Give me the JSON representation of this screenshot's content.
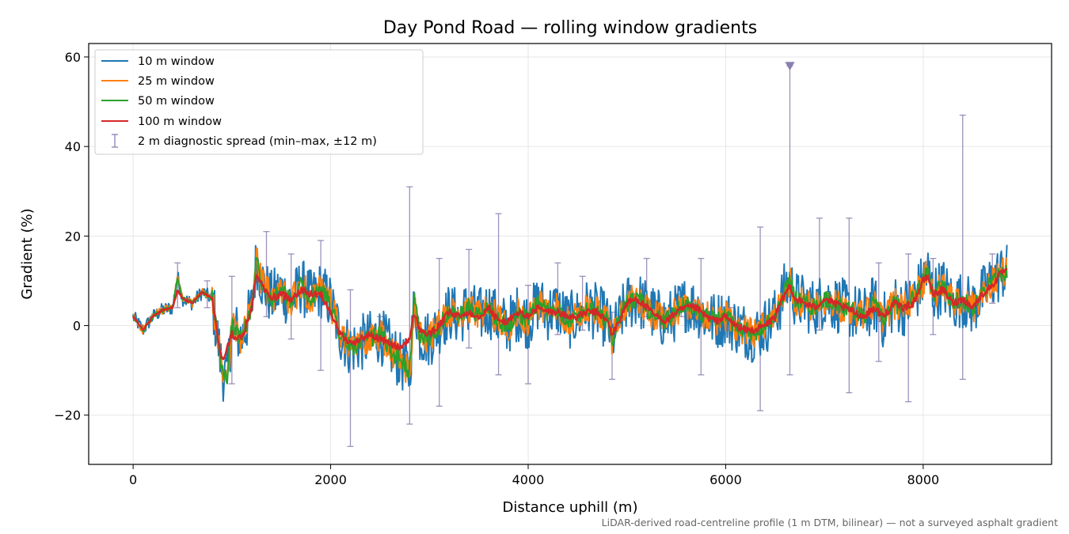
{
  "chart_data": {
    "type": "line",
    "title": "Day Pond Road — rolling window gradients",
    "xlabel": "Distance uphill (m)",
    "ylabel": "Gradient (%)",
    "xlim": [
      -450,
      9300
    ],
    "ylim": [
      -31,
      63
    ],
    "xticks": [
      0,
      2000,
      4000,
      6000,
      8000
    ],
    "yticks": [
      -20,
      0,
      20,
      40,
      60
    ],
    "xtick_labels": [
      "0",
      "2000",
      "4000",
      "6000",
      "8000"
    ],
    "ytick_labels": [
      "−20",
      "0",
      "20",
      "40",
      "60"
    ],
    "grid": true,
    "legend_position": "upper-left",
    "footnote": "LiDAR-derived road-centreline profile (1 m DTM, bilinear) — not a surveyed asphalt gradient",
    "series": [
      {
        "name": "10 m window",
        "color": "#1f77b4",
        "noise": 6.5,
        "x": [
          0,
          100,
          200,
          300,
          400,
          450,
          500,
          600,
          700,
          800,
          850,
          900,
          950,
          1000,
          1100,
          1200,
          1250,
          1300,
          1400,
          1500,
          1600,
          1700,
          1800,
          1900,
          2000,
          2100,
          2200,
          2300,
          2400,
          2500,
          2600,
          2700,
          2800,
          2850,
          2900,
          3000,
          3100,
          3200,
          3300,
          3400,
          3500,
          3600,
          3700,
          3800,
          3900,
          4000,
          4100,
          4200,
          4300,
          4400,
          4500,
          4600,
          4700,
          4800,
          4850,
          4900,
          5000,
          5100,
          5200,
          5300,
          5400,
          5500,
          5600,
          5700,
          5800,
          5900,
          6000,
          6100,
          6200,
          6300,
          6400,
          6500,
          6600,
          6650,
          6700,
          6800,
          6900,
          7000,
          7100,
          7200,
          7300,
          7400,
          7500,
          7600,
          7700,
          7800,
          7900,
          8000,
          8050,
          8100,
          8200,
          8300,
          8400,
          8500,
          8600,
          8700,
          8800,
          8850
        ],
        "y": [
          2,
          -1,
          2,
          3.5,
          4,
          11,
          6,
          5,
          7.5,
          6,
          -2,
          -10,
          -12,
          0,
          -3,
          4,
          15,
          10,
          6,
          8,
          5,
          9,
          6,
          8,
          5,
          -2,
          -5,
          -4,
          -3,
          -2,
          -5,
          -8,
          -10,
          6,
          -2,
          -3,
          0,
          3,
          2,
          4,
          2,
          4,
          1,
          0,
          3,
          1,
          5,
          3,
          4,
          1,
          2,
          4,
          3,
          1,
          -3,
          0,
          5,
          6,
          4,
          2,
          1,
          3,
          5,
          4,
          2,
          1,
          2,
          0,
          -1,
          -2,
          0,
          2,
          8,
          10,
          6,
          5,
          4,
          6,
          5,
          4,
          3,
          2,
          5,
          1,
          5,
          4,
          6,
          10,
          12,
          7,
          9,
          5,
          6,
          4,
          7,
          10,
          12,
          12
        ]
      },
      {
        "name": "25 m window",
        "color": "#ff7f0e",
        "noise": 3.5,
        "x": [
          0,
          100,
          200,
          300,
          400,
          450,
          500,
          600,
          700,
          800,
          850,
          900,
          950,
          1000,
          1100,
          1200,
          1250,
          1300,
          1400,
          1500,
          1600,
          1700,
          1800,
          1900,
          2000,
          2100,
          2200,
          2300,
          2400,
          2500,
          2600,
          2700,
          2800,
          2850,
          2900,
          3000,
          3100,
          3200,
          3300,
          3400,
          3500,
          3600,
          3700,
          3800,
          3900,
          4000,
          4100,
          4200,
          4300,
          4400,
          4500,
          4600,
          4700,
          4800,
          4850,
          4900,
          5000,
          5100,
          5200,
          5300,
          5400,
          5500,
          5600,
          5700,
          5800,
          5900,
          6000,
          6100,
          6200,
          6300,
          6400,
          6500,
          6600,
          6650,
          6700,
          6800,
          6900,
          7000,
          7100,
          7200,
          7300,
          7400,
          7500,
          7600,
          7700,
          7800,
          7900,
          8000,
          8050,
          8100,
          8200,
          8300,
          8400,
          8500,
          8600,
          8700,
          8800,
          8850
        ],
        "y": [
          2,
          -1,
          2,
          3.5,
          4,
          11,
          6,
          5,
          7.5,
          6,
          -2,
          -10,
          -12,
          0,
          -3,
          4,
          15,
          10,
          6,
          8,
          5,
          9,
          6,
          8,
          5,
          -2,
          -5,
          -4,
          -3,
          -2,
          -5,
          -8,
          -10,
          6,
          -2,
          -3,
          0,
          3,
          2,
          4,
          2,
          4,
          1,
          0,
          3,
          1,
          5,
          3,
          4,
          1,
          2,
          4,
          3,
          1,
          -3,
          0,
          5,
          6,
          4,
          2,
          1,
          3,
          5,
          4,
          2,
          1,
          2,
          0,
          -1,
          -2,
          0,
          2,
          8,
          10,
          6,
          5,
          4,
          6,
          5,
          4,
          3,
          2,
          5,
          1,
          5,
          4,
          6,
          10,
          12,
          7,
          9,
          5,
          6,
          4,
          7,
          10,
          12,
          12
        ]
      },
      {
        "name": "50 m window",
        "color": "#2ca02c",
        "noise": 2.0,
        "x": [
          0,
          100,
          200,
          300,
          400,
          450,
          500,
          600,
          700,
          800,
          850,
          900,
          950,
          1000,
          1100,
          1200,
          1250,
          1300,
          1400,
          1500,
          1600,
          1700,
          1800,
          1900,
          2000,
          2100,
          2200,
          2300,
          2400,
          2500,
          2600,
          2700,
          2800,
          2850,
          2900,
          3000,
          3100,
          3200,
          3300,
          3400,
          3500,
          3600,
          3700,
          3800,
          3900,
          4000,
          4100,
          4200,
          4300,
          4400,
          4500,
          4600,
          4700,
          4800,
          4850,
          4900,
          5000,
          5100,
          5200,
          5300,
          5400,
          5500,
          5600,
          5700,
          5800,
          5900,
          6000,
          6100,
          6200,
          6300,
          6400,
          6500,
          6600,
          6650,
          6700,
          6800,
          6900,
          7000,
          7100,
          7200,
          7300,
          7400,
          7500,
          7600,
          7700,
          7800,
          7900,
          8000,
          8050,
          8100,
          8200,
          8300,
          8400,
          8500,
          8600,
          8700,
          8800,
          8850
        ],
        "y": [
          2,
          -1,
          2,
          3.5,
          4,
          11,
          6,
          5,
          7.5,
          6,
          -2,
          -10,
          -12,
          0,
          -3,
          4,
          15,
          10,
          6,
          8,
          5,
          9,
          6,
          8,
          5,
          -2,
          -5,
          -4,
          -3,
          -2,
          -5,
          -8,
          -10,
          6,
          -2,
          -3,
          0,
          3,
          2,
          4,
          2,
          4,
          1,
          0,
          3,
          1,
          5,
          3,
          4,
          1,
          2,
          4,
          3,
          1,
          -3,
          0,
          5,
          6,
          4,
          2,
          1,
          3,
          5,
          4,
          2,
          1,
          2,
          0,
          -1,
          -2,
          0,
          2,
          8,
          10,
          6,
          5,
          4,
          6,
          5,
          4,
          3,
          2,
          5,
          1,
          5,
          4,
          6,
          10,
          12,
          7,
          9,
          5,
          6,
          4,
          7,
          10,
          12,
          12
        ]
      },
      {
        "name": "100 m window",
        "color": "#d62728",
        "noise": 0.8,
        "x": [
          0,
          100,
          200,
          300,
          400,
          450,
          500,
          600,
          700,
          800,
          850,
          900,
          950,
          1000,
          1100,
          1200,
          1250,
          1300,
          1400,
          1500,
          1600,
          1700,
          1800,
          1900,
          2000,
          2100,
          2200,
          2300,
          2400,
          2500,
          2600,
          2700,
          2800,
          2850,
          2900,
          3000,
          3100,
          3200,
          3300,
          3400,
          3500,
          3600,
          3700,
          3800,
          3900,
          4000,
          4100,
          4200,
          4300,
          4400,
          4500,
          4600,
          4700,
          4800,
          4850,
          4900,
          5000,
          5100,
          5200,
          5300,
          5400,
          5500,
          5600,
          5700,
          5800,
          5900,
          6000,
          6100,
          6200,
          6300,
          6400,
          6500,
          6600,
          6650,
          6700,
          6800,
          6900,
          7000,
          7100,
          7200,
          7300,
          7400,
          7500,
          7600,
          7700,
          7800,
          7900,
          8000,
          8050,
          8100,
          8200,
          8300,
          8400,
          8500,
          8600,
          8700,
          8800,
          8850
        ],
        "y": [
          2,
          -1,
          2,
          3.5,
          4,
          8,
          6,
          5,
          7.5,
          6,
          -2,
          -8,
          -5,
          -2,
          -3,
          4,
          12,
          9,
          6,
          7,
          6,
          8,
          7,
          7,
          3,
          -2,
          -4,
          -3,
          -2,
          -3,
          -4,
          -5,
          -3,
          3,
          -1,
          -2,
          0,
          3,
          2,
          3,
          2,
          4,
          1,
          1,
          3,
          2,
          4,
          3,
          3,
          2,
          2,
          3,
          3,
          1,
          -2,
          0,
          5,
          6,
          4,
          2,
          1,
          3,
          4,
          4,
          2,
          1,
          2,
          0,
          -1,
          -1,
          0,
          2,
          7,
          9,
          6,
          5,
          4,
          6,
          5,
          4,
          3,
          2,
          4,
          2,
          5,
          4,
          5,
          10,
          11,
          7,
          8,
          5,
          6,
          4,
          7,
          9,
          12,
          12
        ]
      }
    ],
    "errorbars": {
      "name": "2 m diagnostic spread (min–max, ±12 m)",
      "color": "#8c7fb0",
      "points": [
        {
          "x": 450,
          "lo": 4,
          "hi": 14
        },
        {
          "x": 750,
          "lo": 4,
          "hi": 10
        },
        {
          "x": 1000,
          "lo": -13,
          "hi": 11
        },
        {
          "x": 1350,
          "lo": 2,
          "hi": 21
        },
        {
          "x": 1600,
          "lo": -3,
          "hi": 16
        },
        {
          "x": 1900,
          "lo": -10,
          "hi": 19
        },
        {
          "x": 2200,
          "lo": -27,
          "hi": 8
        },
        {
          "x": 2500,
          "lo": -5,
          "hi": 2
        },
        {
          "x": 2800,
          "lo": -22,
          "hi": 31
        },
        {
          "x": 3100,
          "lo": -18,
          "hi": 15
        },
        {
          "x": 3400,
          "lo": -5,
          "hi": 17
        },
        {
          "x": 3700,
          "lo": -11,
          "hi": 25
        },
        {
          "x": 4000,
          "lo": -13,
          "hi": 9
        },
        {
          "x": 4300,
          "lo": -2,
          "hi": 14
        },
        {
          "x": 4550,
          "lo": -1,
          "hi": 11
        },
        {
          "x": 4850,
          "lo": -12,
          "hi": 3
        },
        {
          "x": 5200,
          "lo": 2,
          "hi": 15
        },
        {
          "x": 5550,
          "lo": 2,
          "hi": 7
        },
        {
          "x": 5750,
          "lo": -11,
          "hi": 15
        },
        {
          "x": 6050,
          "lo": -1,
          "hi": 4
        },
        {
          "x": 6350,
          "lo": -19,
          "hi": 22
        },
        {
          "x": 6650,
          "lo": -11,
          "hi": 58
        },
        {
          "x": 6950,
          "lo": -1,
          "hi": 24
        },
        {
          "x": 7250,
          "lo": -15,
          "hi": 24
        },
        {
          "x": 7550,
          "lo": -8,
          "hi": 14
        },
        {
          "x": 7850,
          "lo": -17,
          "hi": 16
        },
        {
          "x": 8100,
          "lo": -2,
          "hi": 15
        },
        {
          "x": 8400,
          "lo": -12,
          "hi": 47
        },
        {
          "x": 8700,
          "lo": 5,
          "hi": 16
        }
      ],
      "marker": {
        "x": 6650,
        "y": 58,
        "symbol": "down-triangle"
      }
    }
  }
}
